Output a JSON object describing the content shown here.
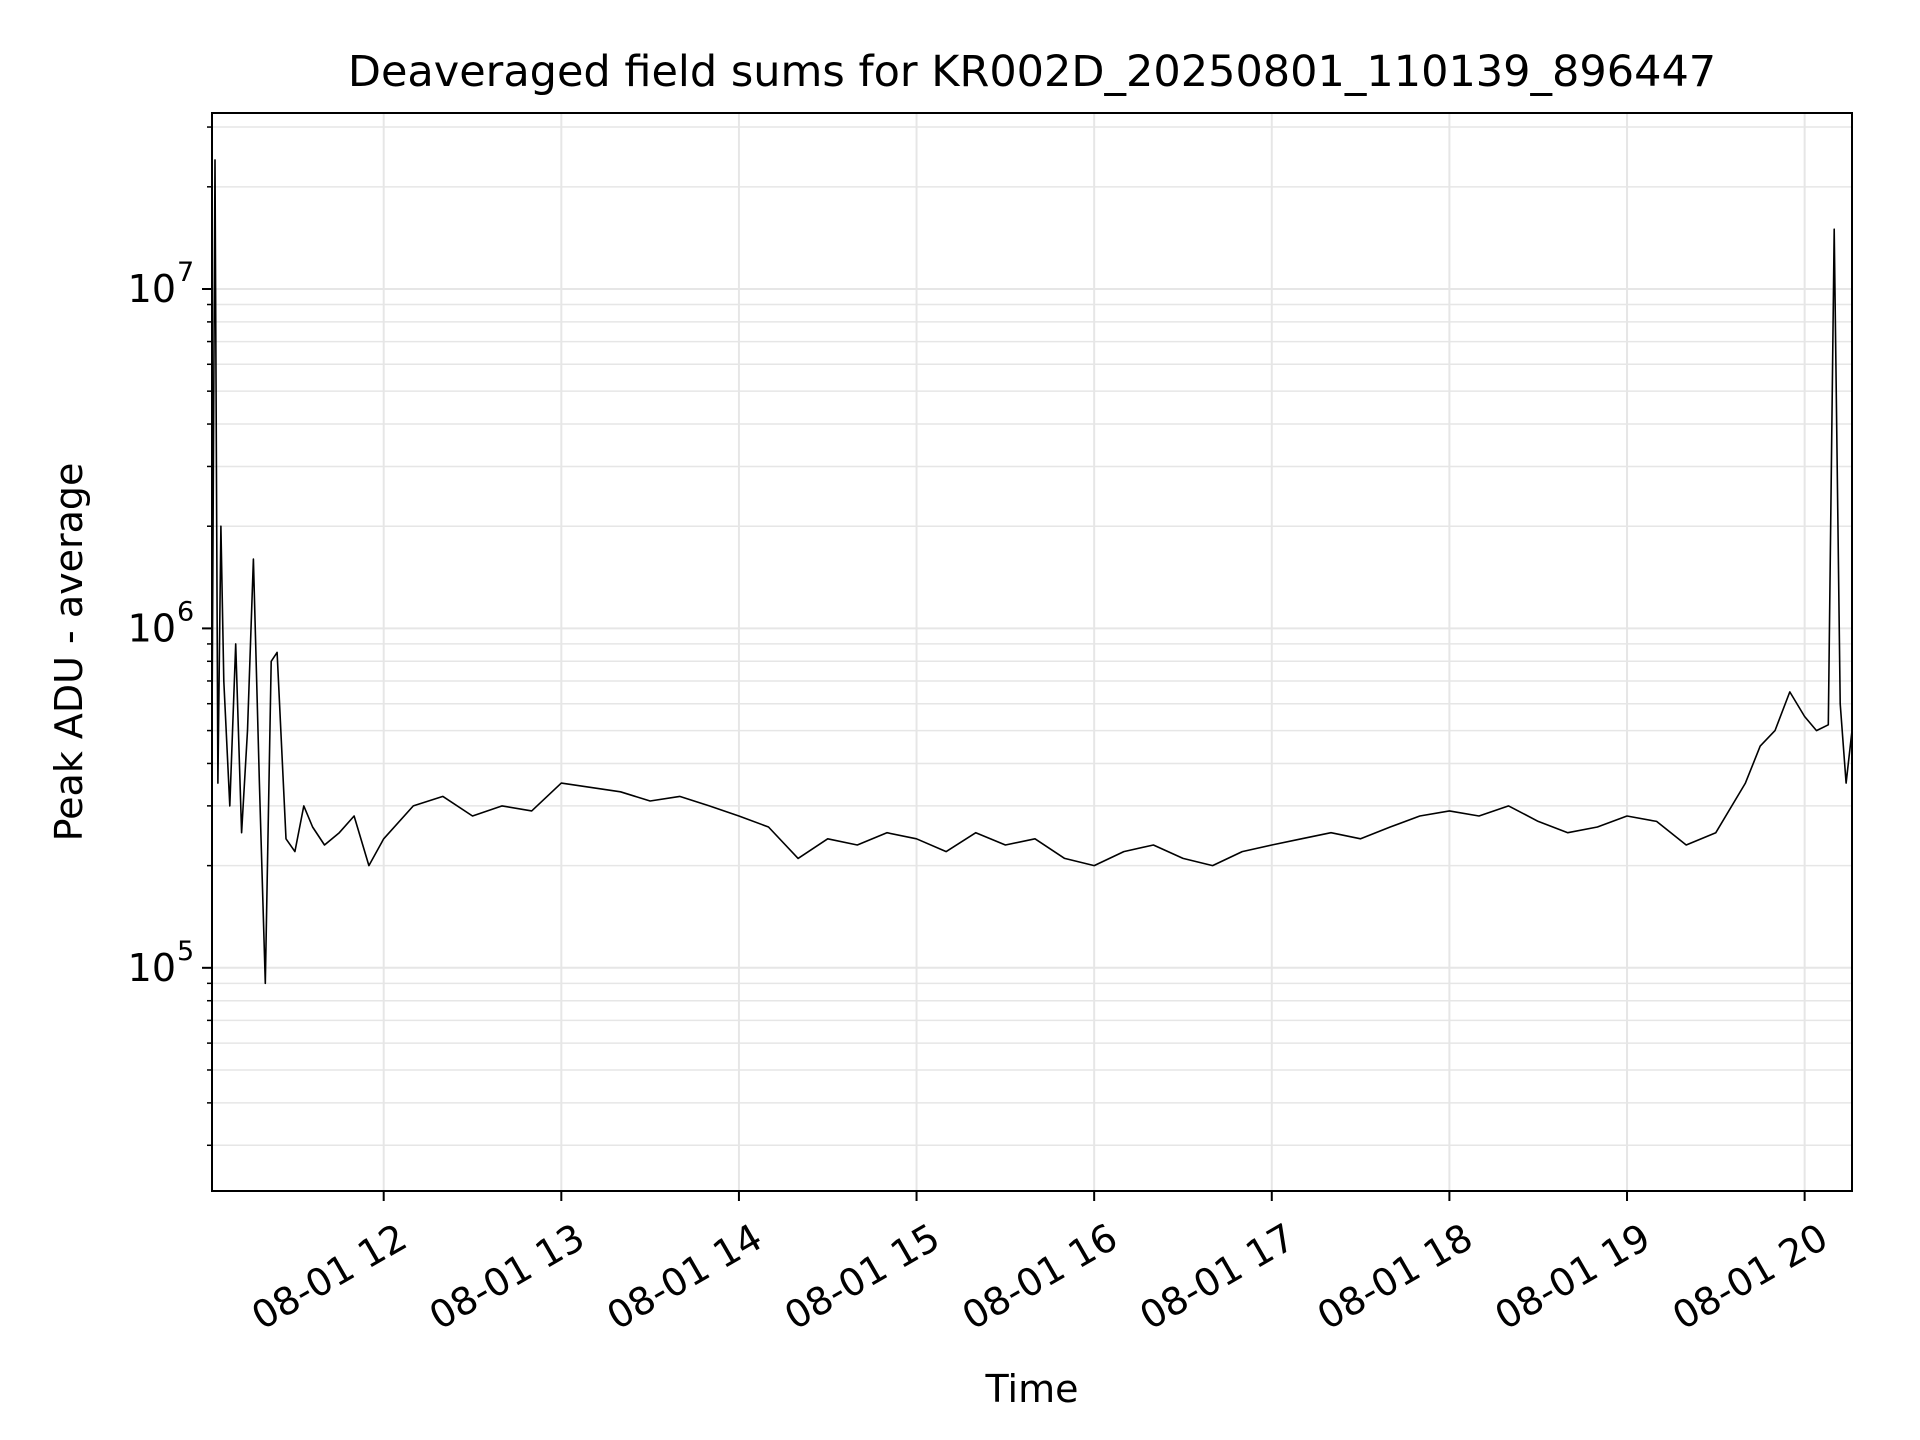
{
  "chart_data": {
    "type": "line",
    "title": "Deaveraged field sums for KR002D_20250801_110139_896447",
    "xlabel": "Time",
    "ylabel": "Peak ADU - average",
    "x_range": [
      "2025-08-01 11:02",
      "2025-08-01 20:16"
    ],
    "ylim": [
      22000,
      33000000
    ],
    "y_scale": "log",
    "grid": true,
    "legend": "none",
    "line_color": "#000000",
    "grid_color": "#e6e6e6",
    "x_ticks": [
      {
        "value": "2025-08-01 12:00",
        "label": "08-01 12"
      },
      {
        "value": "2025-08-01 13:00",
        "label": "08-01 13"
      },
      {
        "value": "2025-08-01 14:00",
        "label": "08-01 14"
      },
      {
        "value": "2025-08-01 15:00",
        "label": "08-01 15"
      },
      {
        "value": "2025-08-01 16:00",
        "label": "08-01 16"
      },
      {
        "value": "2025-08-01 17:00",
        "label": "08-01 17"
      },
      {
        "value": "2025-08-01 18:00",
        "label": "08-01 18"
      },
      {
        "value": "2025-08-01 19:00",
        "label": "08-01 19"
      },
      {
        "value": "2025-08-01 20:00",
        "label": "08-01 20"
      }
    ],
    "y_ticks": [
      {
        "value": 100000,
        "base": "10",
        "exp": "5"
      },
      {
        "value": 1000000,
        "base": "10",
        "exp": "6"
      },
      {
        "value": 10000000,
        "base": "10",
        "exp": "7"
      }
    ],
    "series": [
      {
        "x": [
          "2025-08-01 11:02",
          "2025-08-01 11:03",
          "2025-08-01 11:04",
          "2025-08-01 11:05",
          "2025-08-01 11:06",
          "2025-08-01 11:08",
          "2025-08-01 11:10",
          "2025-08-01 11:12",
          "2025-08-01 11:14",
          "2025-08-01 11:16",
          "2025-08-01 11:18",
          "2025-08-01 11:20",
          "2025-08-01 11:22",
          "2025-08-01 11:24",
          "2025-08-01 11:27",
          "2025-08-01 11:30",
          "2025-08-01 11:33",
          "2025-08-01 11:36",
          "2025-08-01 11:40",
          "2025-08-01 11:45",
          "2025-08-01 11:50",
          "2025-08-01 11:55",
          "2025-08-01 12:00",
          "2025-08-01 12:10",
          "2025-08-01 12:20",
          "2025-08-01 12:30",
          "2025-08-01 12:40",
          "2025-08-01 12:50",
          "2025-08-01 13:00",
          "2025-08-01 13:10",
          "2025-08-01 13:20",
          "2025-08-01 13:30",
          "2025-08-01 13:40",
          "2025-08-01 13:50",
          "2025-08-01 14:00",
          "2025-08-01 14:10",
          "2025-08-01 14:20",
          "2025-08-01 14:30",
          "2025-08-01 14:40",
          "2025-08-01 14:50",
          "2025-08-01 15:00",
          "2025-08-01 15:10",
          "2025-08-01 15:20",
          "2025-08-01 15:30",
          "2025-08-01 15:40",
          "2025-08-01 15:50",
          "2025-08-01 16:00",
          "2025-08-01 16:10",
          "2025-08-01 16:20",
          "2025-08-01 16:30",
          "2025-08-01 16:40",
          "2025-08-01 16:50",
          "2025-08-01 17:00",
          "2025-08-01 17:10",
          "2025-08-01 17:20",
          "2025-08-01 17:30",
          "2025-08-01 17:40",
          "2025-08-01 17:50",
          "2025-08-01 18:00",
          "2025-08-01 18:10",
          "2025-08-01 18:20",
          "2025-08-01 18:30",
          "2025-08-01 18:40",
          "2025-08-01 18:50",
          "2025-08-01 19:00",
          "2025-08-01 19:10",
          "2025-08-01 19:20",
          "2025-08-01 19:30",
          "2025-08-01 19:40",
          "2025-08-01 19:45",
          "2025-08-01 19:50",
          "2025-08-01 19:55",
          "2025-08-01 20:00",
          "2025-08-01 20:04",
          "2025-08-01 20:08",
          "2025-08-01 20:10",
          "2025-08-01 20:12",
          "2025-08-01 20:14",
          "2025-08-01 20:16"
        ],
        "y": [
          500000,
          24000000,
          350000,
          2000000,
          700000,
          300000,
          900000,
          250000,
          500000,
          1600000,
          350000,
          90000,
          800000,
          850000,
          240000,
          220000,
          300000,
          260000,
          230000,
          250000,
          280000,
          200000,
          240000,
          300000,
          320000,
          280000,
          300000,
          290000,
          350000,
          340000,
          330000,
          310000,
          320000,
          300000,
          280000,
          260000,
          210000,
          240000,
          230000,
          250000,
          240000,
          220000,
          250000,
          230000,
          240000,
          210000,
          200000,
          220000,
          230000,
          210000,
          200000,
          220000,
          230000,
          240000,
          250000,
          240000,
          260000,
          280000,
          290000,
          280000,
          300000,
          270000,
          250000,
          260000,
          280000,
          270000,
          230000,
          250000,
          350000,
          450000,
          500000,
          650000,
          550000,
          500000,
          520000,
          15000000,
          600000,
          350000,
          500000
        ]
      }
    ]
  }
}
